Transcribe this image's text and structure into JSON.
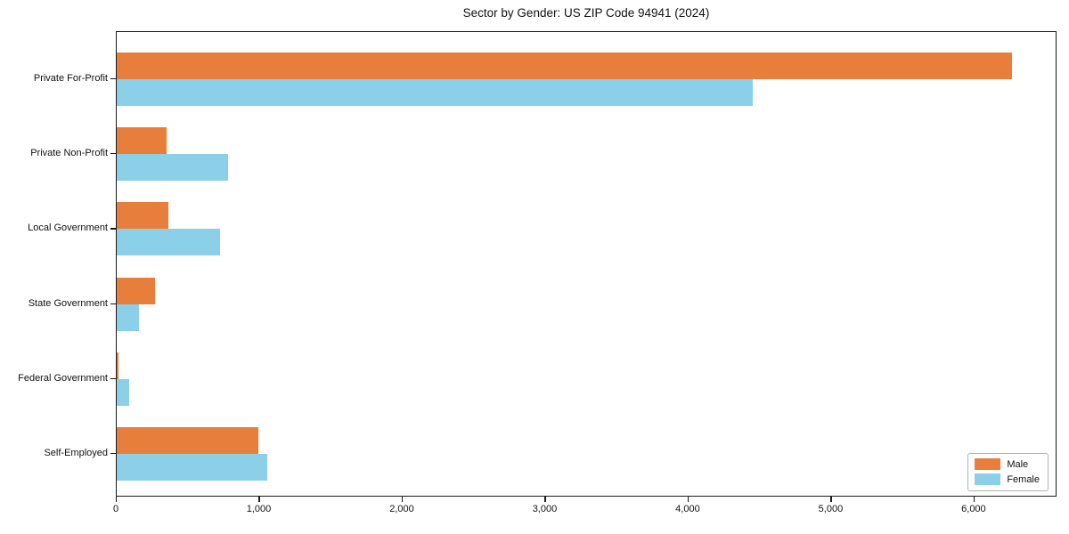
{
  "chart_data": {
    "type": "bar",
    "orientation": "horizontal",
    "title": "Sector by Gender: US ZIP Code 94941 (2024)",
    "categories": [
      "Private For-Profit",
      "Private Non-Profit",
      "Local Government",
      "State Government",
      "Federal Government",
      "Self-Employed"
    ],
    "series": [
      {
        "name": "Male",
        "color": "#e87e3c",
        "values": [
          6260,
          350,
          360,
          270,
          10,
          990
        ]
      },
      {
        "name": "Female",
        "color": "#8bcfe9",
        "values": [
          4450,
          780,
          720,
          155,
          90,
          1050
        ]
      }
    ],
    "xlabel": "",
    "ylabel": "",
    "xlim": [
      0,
      6580
    ],
    "xticks": [
      0,
      1000,
      2000,
      3000,
      4000,
      5000,
      6000
    ],
    "xtick_labels": [
      "0",
      "1,000",
      "2,000",
      "3,000",
      "4,000",
      "5,000",
      "6,000"
    ],
    "legend_position": "lower right",
    "grid": false,
    "frame_color": "#1a1a1a",
    "background_color": "#ffffff"
  }
}
